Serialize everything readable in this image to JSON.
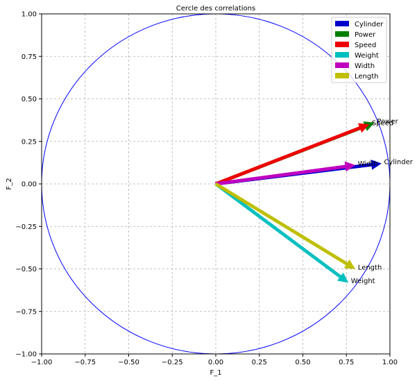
{
  "chart_data": {
    "type": "scatter",
    "title": "Cercle des correlations",
    "xlabel": "F_1",
    "ylabel": "F_2",
    "xlim": [
      -1.0,
      1.0
    ],
    "ylim": [
      -1.0,
      1.0
    ],
    "xticks": [
      "−1.00",
      "−0.75",
      "−0.50",
      "−0.25",
      "0.00",
      "0.25",
      "0.50",
      "0.75",
      "1.00"
    ],
    "yticks": [
      "−1.00",
      "−0.75",
      "−0.50",
      "−0.25",
      "0.00",
      "0.25",
      "0.50",
      "0.75",
      "1.00"
    ],
    "grid": true,
    "legend_position": "top-right",
    "unit_circle": true,
    "circle_color": "#0000ff",
    "series": [
      {
        "name": "Cylinder",
        "x": 0.95,
        "y": 0.12,
        "color": "#0000cc",
        "label": "Cylinder"
      },
      {
        "name": "Power",
        "x": 0.91,
        "y": 0.36,
        "color": "#007f00",
        "label": "Power"
      },
      {
        "name": "Speed",
        "x": 0.88,
        "y": 0.35,
        "color": "#ee0000",
        "label": "Speed"
      },
      {
        "name": "Weight",
        "x": 0.76,
        "y": -0.58,
        "color": "#00bfbf",
        "label": "Weight"
      },
      {
        "name": "Width",
        "x": 0.8,
        "y": 0.11,
        "color": "#bf00bf",
        "label": "Width"
      },
      {
        "name": "Length",
        "x": 0.8,
        "y": -0.5,
        "color": "#bfbf00",
        "label": "Length"
      }
    ]
  }
}
